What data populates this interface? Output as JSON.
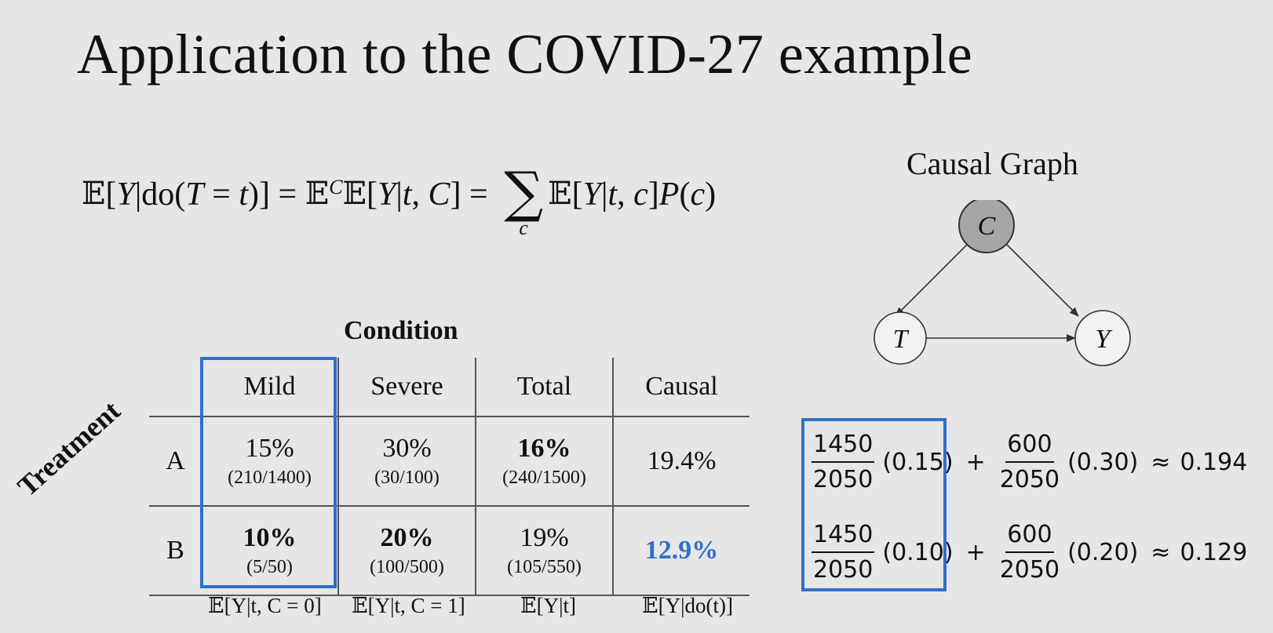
{
  "slide": {
    "title": "Application to the COVID-27 example"
  },
  "formula": {
    "bb_E": "𝔼",
    "bracket_open": "[",
    "Y": "Y",
    "bar": "|",
    "do": "do",
    "paren_open": "(",
    "T": "T",
    "eq": " = ",
    "t": "t",
    "paren_close": ")",
    "bracket_close": "]",
    "C_sub": "C",
    "comma": ", ",
    "C": "C",
    "sigma": "∑",
    "sigma_sub": "c",
    "c": "c",
    "P": "P"
  },
  "causal_graph": {
    "title": "Causal Graph",
    "nodes": {
      "confounder": "C",
      "treatment": "T",
      "outcome": "Y"
    },
    "colors": {
      "confounder_fill": "#a6a6a6",
      "node_fill": "#f2f2f2",
      "stroke": "#333333"
    }
  },
  "table": {
    "condition_header": "Condition",
    "treatment_label": "Treatment",
    "columns": [
      "Mild",
      "Severe",
      "Total",
      "Causal"
    ],
    "rows": [
      {
        "label": "A",
        "cells": [
          {
            "pct": "15%",
            "frac": "(210/1400)"
          },
          {
            "pct": "30%",
            "frac": "(30/100)"
          },
          {
            "pct": "16%",
            "frac": "(240/1500)"
          },
          {
            "pct": "19.4%",
            "frac": ""
          }
        ]
      },
      {
        "label": "B",
        "cells": [
          {
            "pct": "10%",
            "frac": "(5/50)"
          },
          {
            "pct": "20%",
            "frac": "(100/500)"
          },
          {
            "pct": "19%",
            "frac": "(105/550)"
          },
          {
            "pct": "12.9%",
            "frac": ""
          }
        ]
      }
    ],
    "expressions": [
      "𝔼[Y|t, C = 0]",
      "𝔼[Y|t, C = 1]",
      "𝔼[Y|t]",
      "𝔼[Y|do(t)]"
    ],
    "accent_color": "#2f6fc9"
  },
  "computation": {
    "rows": [
      {
        "num1": "1450",
        "den1": "2050",
        "val1": "(0.15)",
        "plus": "+",
        "num2": "600",
        "den2": "2050",
        "val2": "(0.30)",
        "approx": "≈",
        "result": "0.194"
      },
      {
        "num1": "1450",
        "den1": "2050",
        "val1": "(0.10)",
        "plus": "+",
        "num2": "600",
        "den2": "2050",
        "val2": "(0.20)",
        "approx": "≈",
        "result": "0.129"
      }
    ]
  }
}
